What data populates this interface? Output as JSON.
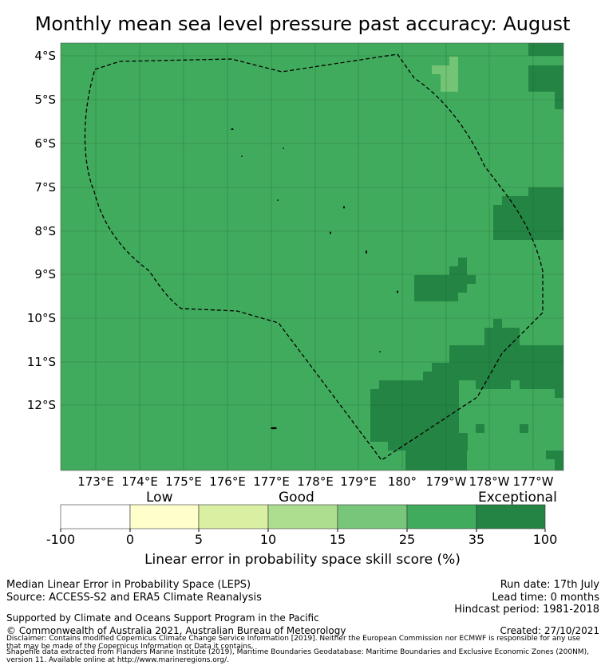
{
  "title": "Monthly mean sea level pressure past accuracy: August",
  "map": {
    "lat_labels": [
      "4°S",
      "5°S",
      "6°S",
      "7°S",
      "8°S",
      "9°S",
      "10°S",
      "11°S",
      "12°S"
    ],
    "lon_labels": [
      "173°E",
      "174°E",
      "175°E",
      "176°E",
      "177°E",
      "178°E",
      "179°E",
      "180°",
      "179°W",
      "178°W",
      "177°W"
    ],
    "colors": {
      "base": "#41ab5d",
      "dark": "#238443",
      "light": "#74c476",
      "grid": "#1a5c2e",
      "boundary": "#000000"
    }
  },
  "colorbar": {
    "category_labels": [
      "Low",
      "Good",
      "Exceptional"
    ],
    "ticks": [
      "-100",
      "0",
      "5",
      "10",
      "15",
      "25",
      "35",
      "100"
    ],
    "colors": [
      "#ffffff",
      "#ffffcc",
      "#d9f0a3",
      "#addd8e",
      "#78c679",
      "#41ab5d",
      "#238443"
    ],
    "label": "Linear error in probability space skill score (%)"
  },
  "footer": {
    "left1": "Median Linear Error in Probability Space (LEPS)",
    "left2": "Source: ACCESS-S2 and ERA5 Climate Reanalysis",
    "support": "Supported by Climate and Oceans Support Program in the Pacific",
    "copyright": "© Commonwealth of Australia 2021, Australian Bureau of Meteorology",
    "run_date": "Run date: 17th July",
    "lead_time": "Lead time: 0 months",
    "hindcast": "Hindcast period: 1981-2018",
    "created": "Created: 27/10/2021",
    "disclaimer1": "Disclaimer: Contains modified Copernicus Climate Change Service Information [2019]. Neither the European Commission nor ECMWF is responsible for any use",
    "disclaimer2": "that may be made of the Copernicus Information or Data it contains.",
    "shapefile1": "Shapefile data extracted from Flanders Marine Institute (2019), Maritime Boundaries Geodatabase: Maritime Boundaries and Exclusive Economic Zones (200NM),",
    "shapefile2": "version 11. Available online at http://www.marineregions.org/."
  }
}
